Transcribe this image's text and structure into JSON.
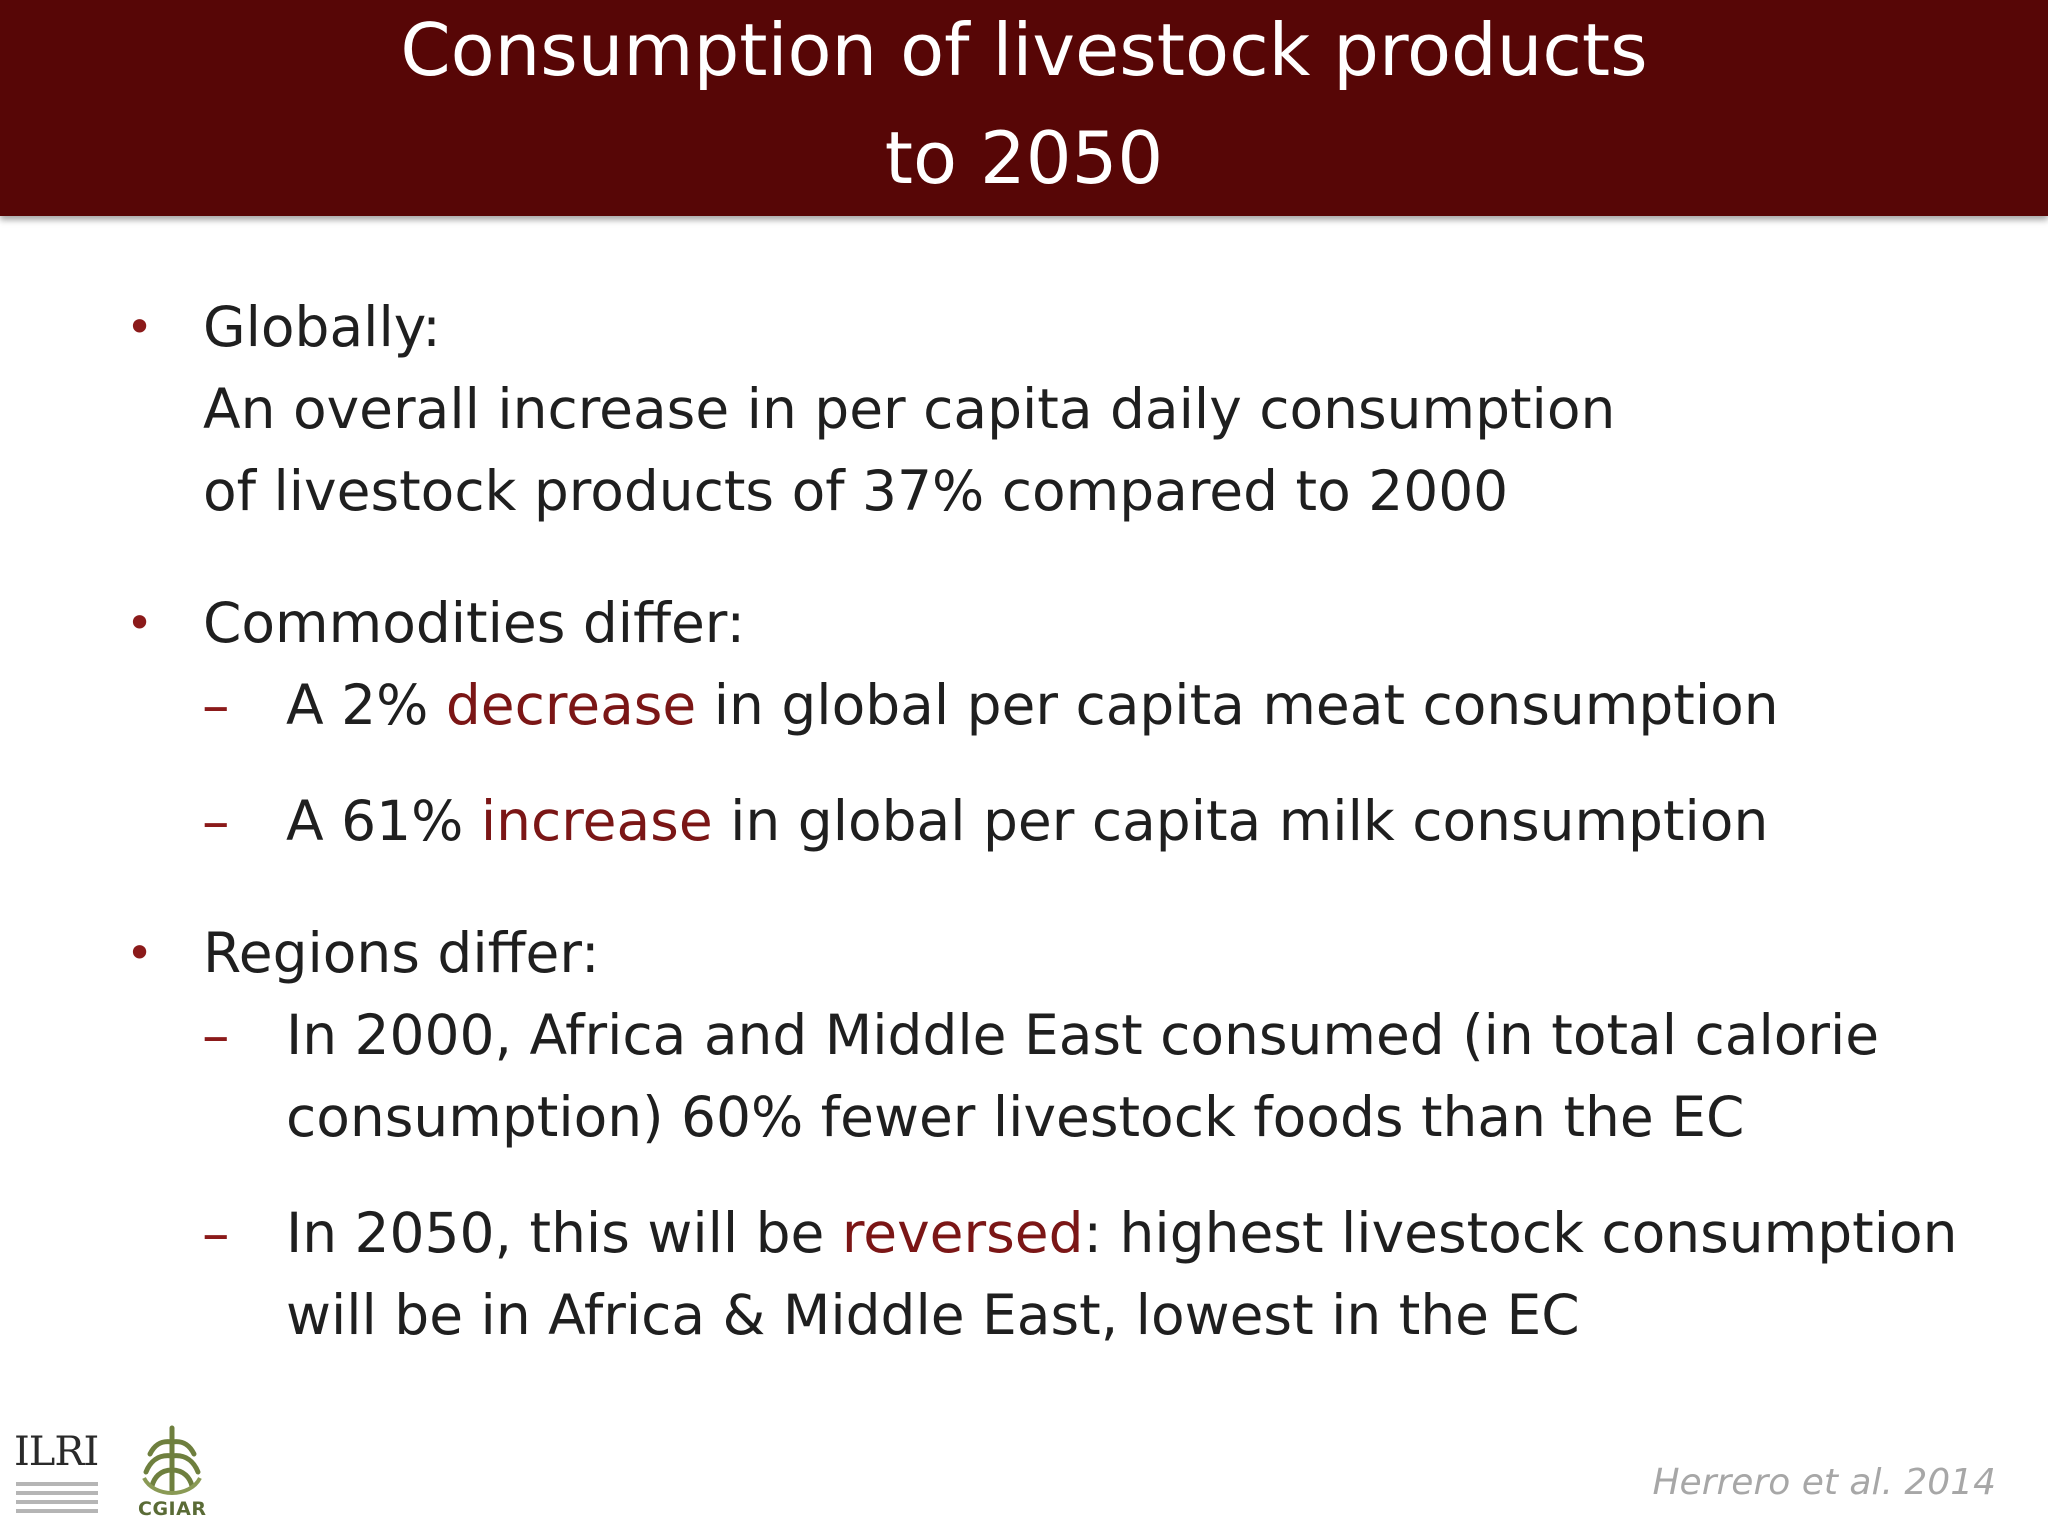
{
  "slide": {
    "title_line1": "Consumption of livestock products",
    "title_line2": "to 2050"
  },
  "bullets": {
    "globally": {
      "heading": "Globally:",
      "line1": "An overall increase in per capita daily consumption",
      "line2": "of livestock products of 37% compared to 2000"
    },
    "commodities": {
      "heading": "Commodities differ:",
      "sub1": {
        "pre": "A 2% ",
        "highlight": "decrease",
        "post": " in global per capita meat consumption"
      },
      "sub2": {
        "pre": "A 61% ",
        "highlight": "increase",
        "post": " in global  per capita milk consumption"
      }
    },
    "regions": {
      "heading": "Regions differ:",
      "sub1": {
        "line1": "In 2000, Africa and Middle East consumed (in total calorie",
        "line2": "consumption) 60% fewer livestock foods than the EC"
      },
      "sub2": {
        "pre": "In 2050, this will be ",
        "highlight": "reversed",
        "post": ": highest livestock consumption",
        "line2": "will be in Africa & Middle East, lowest in the EC"
      }
    }
  },
  "bullet_marker": "•",
  "dash_marker": "–",
  "logos": {
    "ilri_text": "ILRI",
    "cgiar_text": "CGIAR"
  },
  "citation": "Herrero et al. 2014",
  "colors": {
    "title_bar": "#570606",
    "accent": "#7b1616",
    "citation": "#a7a7a7"
  }
}
